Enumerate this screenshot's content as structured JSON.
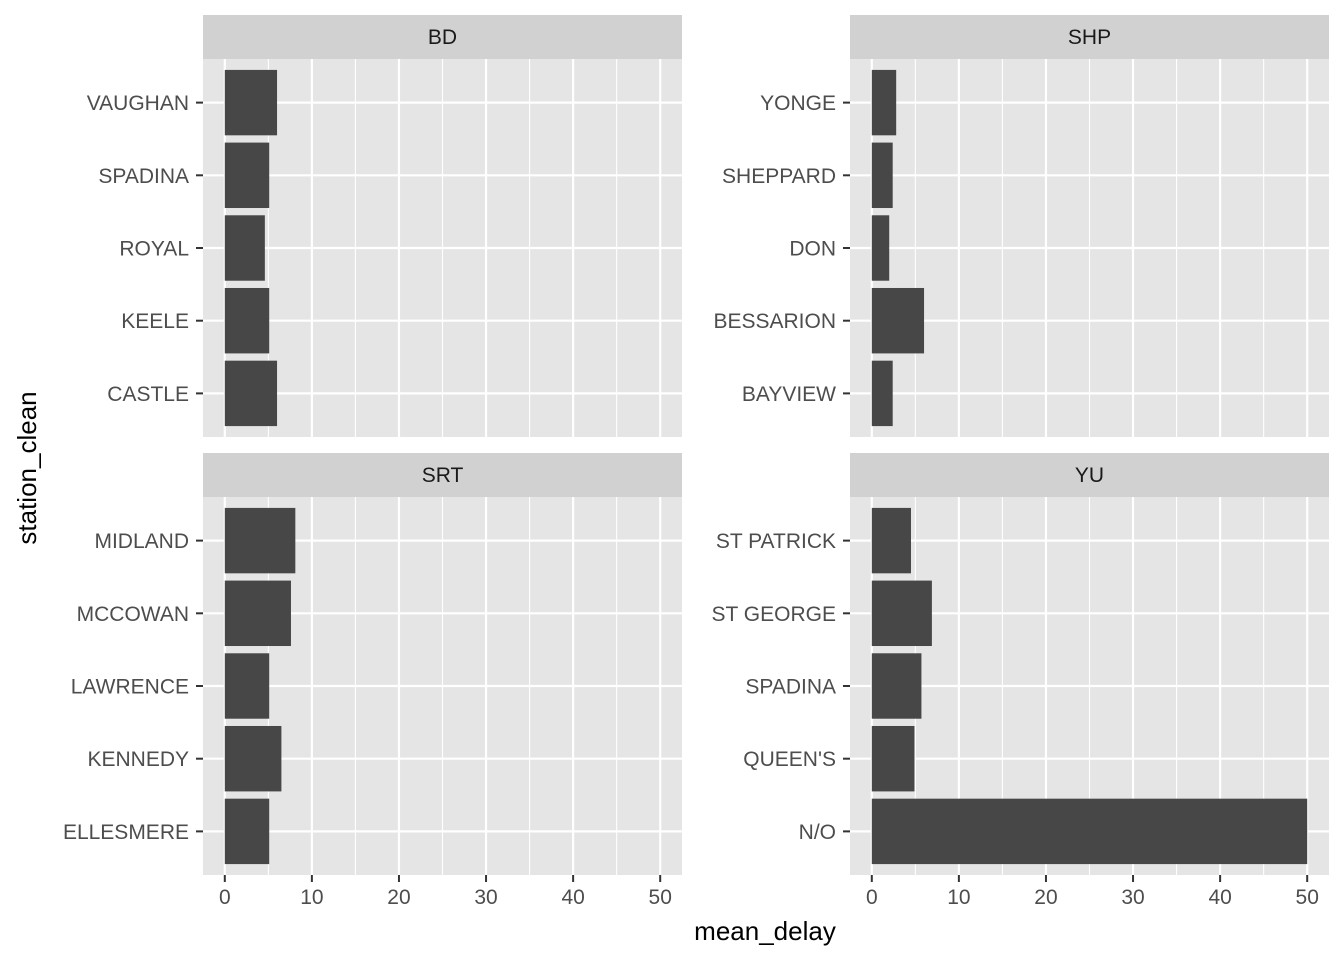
{
  "chart_data": {
    "type": "bar",
    "orientation": "horizontal",
    "xlabel": "mean_delay",
    "ylabel": "station_clean",
    "xlim": [
      0,
      50
    ],
    "x_ticks": [
      0,
      10,
      20,
      30,
      40,
      50
    ],
    "grid": true,
    "colors": {
      "bar": "#474747",
      "panel_background": "#e5e5e5",
      "strip_background": "#d1d1d1",
      "grid": "#ffffff"
    },
    "panels": [
      {
        "facet": "BD",
        "categories": [
          "VAUGHAN",
          "SPADINA",
          "ROYAL",
          "KEELE",
          "CASTLE"
        ],
        "values": [
          6.0,
          5.1,
          4.6,
          5.1,
          6.0
        ]
      },
      {
        "facet": "SHP",
        "categories": [
          "YONGE",
          "SHEPPARD",
          "DON",
          "BESSARION",
          "BAYVIEW"
        ],
        "values": [
          2.8,
          2.4,
          2.0,
          6.0,
          2.4
        ]
      },
      {
        "facet": "SRT",
        "categories": [
          "MIDLAND",
          "MCCOWAN",
          "LAWRENCE",
          "KENNEDY",
          "ELLESMERE"
        ],
        "values": [
          8.1,
          7.6,
          5.1,
          6.5,
          5.1
        ]
      },
      {
        "facet": "YU",
        "categories": [
          "ST PATRICK",
          "ST GEORGE",
          "SPADINA",
          "QUEEN'S",
          "N/O"
        ],
        "values": [
          4.5,
          6.9,
          5.7,
          4.9,
          50.0
        ]
      }
    ]
  }
}
